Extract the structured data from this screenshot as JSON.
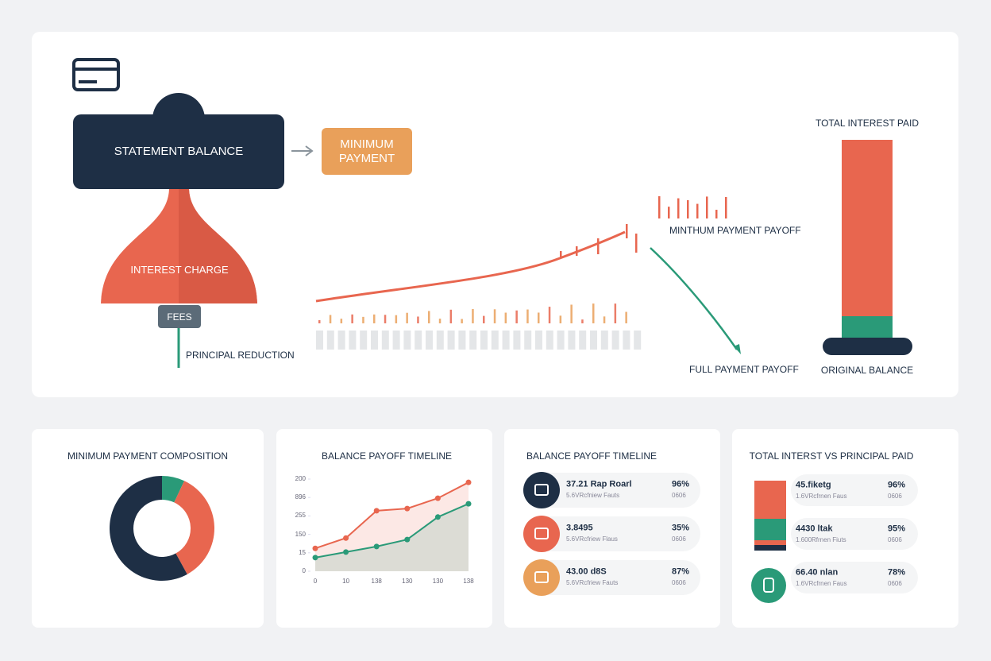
{
  "diagram": {
    "nodes": {
      "statement_balance": "STATEMENT BALANCE",
      "minimum_payment": "MINIMUM PAYMENT",
      "interest_charge": "INTEREST CHARGE",
      "fees": "FEES",
      "principal_reduction": "PRINCIPAL REDUCTION"
    },
    "minimum_payoff": "MINTHUM PAYMENT PAYOFF",
    "full_payoff": "FULL PAYMENT PAYOFF",
    "total_interest_paid": "TOTAL INTEREST PAID",
    "original_balance": "ORIGINAL BALANCE"
  },
  "chart_data": [
    {
      "type": "pie",
      "title": "MINIMUM PAYMENT COMPOSITION",
      "donut": true,
      "categories": [
        null,
        null,
        null
      ],
      "values": [
        7,
        35,
        58
      ],
      "colors": [
        "#2a9a78",
        "#e8664f",
        "#1e2f45"
      ]
    },
    {
      "type": "line",
      "title": "BALANCE PAYOFF TIMELINE",
      "categories": [
        "0",
        "10",
        "138",
        "130",
        "130",
        "138"
      ],
      "series": [
        {
          "name": null,
          "color": "#e8664f",
          "values": [
            62,
            90,
            164,
            170,
            198,
            241
          ]
        },
        {
          "name": null,
          "color": "#2a9a78",
          "values": [
            37,
            52,
            67,
            86,
            147,
            183
          ]
        }
      ],
      "area": true,
      "ylim": [
        0,
        250
      ],
      "yticks": [
        0,
        {
          "value": 50,
          "label": "15"
        },
        {
          "value": 100,
          "label": "150"
        },
        {
          "value": 150,
          "label": "255"
        },
        {
          "value": 200,
          "label": "896"
        },
        {
          "value": 250,
          "label": "200"
        }
      ]
    }
  ],
  "payoff_list": {
    "title": "BALANCE PAYOFF TIMELINE",
    "rows": [
      {
        "title": "37.21 Rap Roarl",
        "subtitle": "5.6VRcfniew Fauts",
        "percent": "96%",
        "note": "0606"
      },
      {
        "title": "3.8495",
        "subtitle": "5.6VRcfriew Flaus",
        "percent": "35%",
        "note": "0606"
      },
      {
        "title": "43.00 d8S",
        "subtitle": "5.6VRcfriew Fauts",
        "percent": "87%",
        "note": "0606"
      }
    ]
  },
  "interest_vs_principal": {
    "title": "TOTAL INTERST VS PRINCIPAL PAID",
    "rows": [
      {
        "title": "45.fiketg",
        "subtitle": "1.6VRcfrnen Faus",
        "percent": "96%",
        "note": "0606"
      },
      {
        "title": "4430 ltak",
        "subtitle": "1.600Rfrnen Fiuts",
        "percent": "95%",
        "note": "0606"
      },
      {
        "title": "66.40 nlan",
        "subtitle": "1.6VRcfrnen Faus",
        "percent": "78%",
        "note": "0606"
      }
    ]
  }
}
